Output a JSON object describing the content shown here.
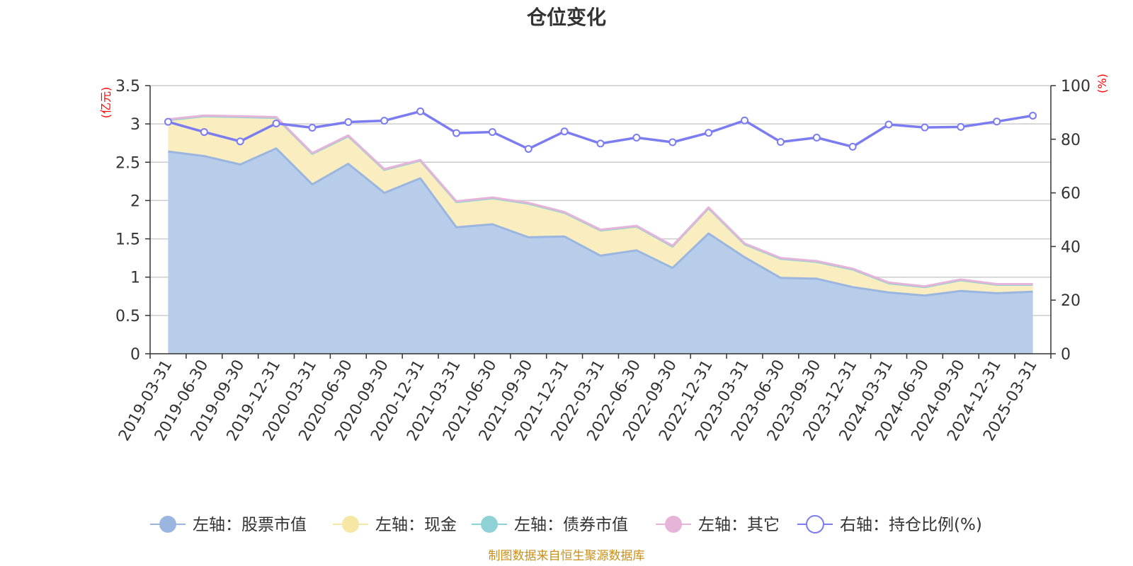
{
  "chart_data": {
    "type": "area",
    "title": "仓位变化",
    "left_unit": "(亿元)",
    "right_unit": "(%)",
    "left_ylim": [
      0,
      3.5
    ],
    "left_ticks": [
      0,
      0.5,
      1,
      1.5,
      2,
      2.5,
      3,
      3.5
    ],
    "left_tick_labels": [
      "0",
      "0.5",
      "1",
      "1.5",
      "2",
      "2.5",
      "3",
      "3.5"
    ],
    "right_ylim": [
      0,
      100
    ],
    "right_ticks": [
      0,
      20,
      40,
      60,
      80,
      100
    ],
    "right_tick_labels": [
      "0",
      "20",
      "40",
      "60",
      "80",
      "100"
    ],
    "grid": true,
    "categories": [
      "2019-03-31",
      "2019-06-30",
      "2019-09-30",
      "2019-12-31",
      "2020-03-31",
      "2020-06-30",
      "2020-09-30",
      "2020-12-31",
      "2021-03-31",
      "2021-06-30",
      "2021-09-30",
      "2021-12-31",
      "2022-03-31",
      "2022-06-30",
      "2022-09-30",
      "2022-12-31",
      "2023-03-31",
      "2023-06-30",
      "2023-09-30",
      "2023-12-31",
      "2024-03-31",
      "2024-06-30",
      "2024-09-30",
      "2024-12-31",
      "2025-03-31"
    ],
    "series": [
      {
        "name": "左轴：股票市值",
        "axis": "left",
        "color": "#9ab6e0",
        "fill": "#b8cdea",
        "values": [
          2.64,
          2.58,
          2.47,
          2.68,
          2.21,
          2.48,
          2.1,
          2.29,
          1.65,
          1.69,
          1.52,
          1.53,
          1.28,
          1.35,
          1.12,
          1.57,
          1.26,
          0.99,
          0.98,
          0.87,
          0.8,
          0.76,
          0.82,
          0.79,
          0.81
        ]
      },
      {
        "name": "左轴：现金",
        "axis": "left",
        "color": "#f7e7a5",
        "fill": "#faedc0",
        "values": [
          0.41,
          0.52,
          0.62,
          0.4,
          0.4,
          0.36,
          0.3,
          0.23,
          0.33,
          0.34,
          0.44,
          0.31,
          0.33,
          0.31,
          0.28,
          0.33,
          0.17,
          0.25,
          0.22,
          0.23,
          0.12,
          0.11,
          0.14,
          0.11,
          0.09
        ]
      },
      {
        "name": "左轴：债券市值",
        "axis": "left",
        "color": "#8fd2d6",
        "fill": "#b9e3e6",
        "values": [
          0,
          0,
          0,
          0,
          0,
          0,
          0,
          0,
          0,
          0,
          0,
          0,
          0,
          0,
          0,
          0,
          0,
          0,
          0,
          0,
          0,
          0,
          0,
          0,
          0
        ]
      },
      {
        "name": "左轴：其它",
        "axis": "left",
        "color": "#e6b3d9",
        "fill": "#f0d0e8",
        "values": [
          0.01,
          0.01,
          0.01,
          0.01,
          0.01,
          0.01,
          0.01,
          0.01,
          0.01,
          0.01,
          0.01,
          0.01,
          0.01,
          0.01,
          0.01,
          0.01,
          0.01,
          0.01,
          0.01,
          0.01,
          0.01,
          0.01,
          0.01,
          0.01,
          0.01
        ]
      },
      {
        "name": "右轴：持仓比例(%)",
        "axis": "right",
        "color": "#7b7cf0",
        "values": [
          86.5,
          82.7,
          79.2,
          85.9,
          84.3,
          86.4,
          86.9,
          90.4,
          82.3,
          82.7,
          76.4,
          82.9,
          78.4,
          80.6,
          78.9,
          82.4,
          87.0,
          79.0,
          80.6,
          77.2,
          85.5,
          84.4,
          84.6,
          86.6,
          88.8
        ]
      }
    ],
    "legend_position": "bottom-center",
    "source_note": "制图数据来自恒生聚源数据库"
  }
}
